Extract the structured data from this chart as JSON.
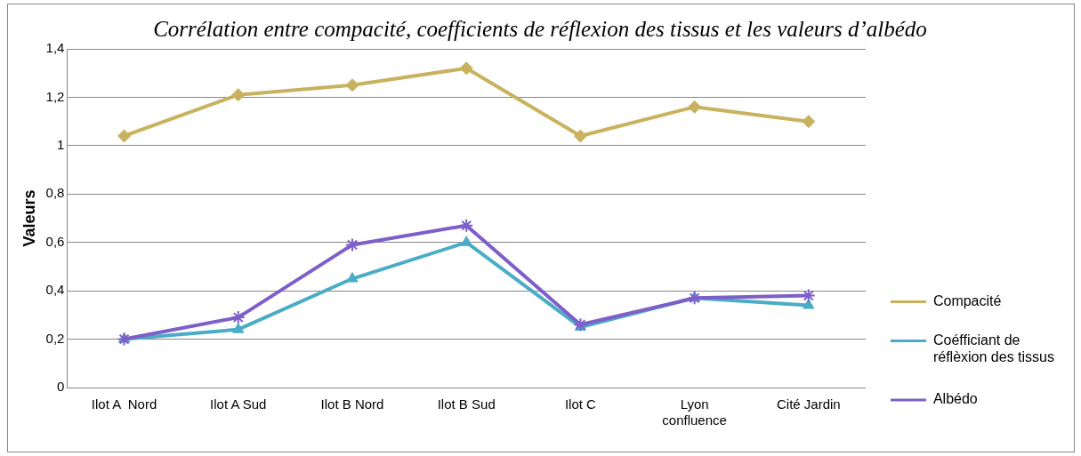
{
  "chart_data": {
    "type": "line",
    "title": "Corrélation entre compacité, coefficients de réflexion des tissus et les valeurs d’albédo",
    "ylabel": "Valeurs",
    "categories": [
      "Ilot A  Nord",
      "Ilot A Sud",
      "Ilot B Nord",
      "Ilot B Sud",
      "Ilot C",
      "Lyon confluence",
      "Cité Jardin"
    ],
    "series": [
      {
        "name": "Compacité",
        "color": "#c9b25f",
        "marker": "diamond",
        "values": [
          1.04,
          1.21,
          1.25,
          1.32,
          1.04,
          1.16,
          1.1
        ]
      },
      {
        "name": "Coéfficiant de réflèxion des tissus",
        "color": "#4bacc6",
        "marker": "triangle",
        "values": [
          0.2,
          0.24,
          0.45,
          0.6,
          0.25,
          0.37,
          0.34
        ]
      },
      {
        "name": "Albédo",
        "color": "#7e5fc9",
        "marker": "cross",
        "values": [
          0.2,
          0.29,
          0.59,
          0.67,
          0.26,
          0.37,
          0.38
        ]
      }
    ],
    "ylim": [
      0,
      1.4
    ],
    "yticks": [
      0,
      {
        "value": 0.2,
        "label": "0,2"
      },
      {
        "value": 0.4,
        "label": "0,4"
      },
      {
        "value": 0.6,
        "label": "0,6"
      },
      {
        "value": 0.8,
        "label": "0,8"
      },
      1,
      {
        "value": 1.2,
        "label": "1,2"
      },
      {
        "value": 1.4,
        "label": "1,4"
      }
    ],
    "grid": "y",
    "legend": "right",
    "line_style": "solid"
  }
}
